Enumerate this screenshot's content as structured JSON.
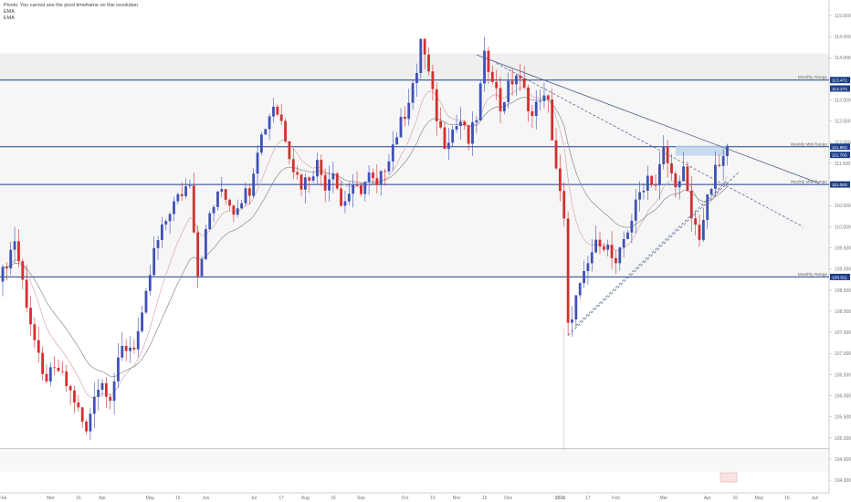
{
  "legend": {
    "pivots": "Pivots: You cannot see the pivot timeframe on this resolution",
    "ema1": "EMA",
    "ema2": "EMA"
  },
  "colors": {
    "up": "#3f51b5",
    "down": "#d32f2f",
    "level_line": "#1e3f8a",
    "range_band": "#efefef",
    "highlight": "#bcd3ee",
    "ema_fast": "#d7a8a8",
    "ema_slow": "#8c8c8c"
  },
  "chart_data": {
    "type": "candlestick",
    "symbol_hint": "USD/JPY weekly",
    "ylim": [
      103.7,
      115.15
    ],
    "yticks": [
      "104.000",
      "104.500",
      "105.000",
      "105.500",
      "106.000",
      "106.500",
      "107.000",
      "107.500",
      "108.000",
      "108.500",
      "109.000",
      "109.500",
      "110.000",
      "110.500",
      "111.000",
      "111.500",
      "112.000",
      "112.500",
      "113.000",
      "113.500",
      "114.000",
      "114.500",
      "115.000"
    ],
    "x_labels": [
      {
        "label": "Feb",
        "i": 0
      },
      {
        "label": "Mar",
        "i": 12
      },
      {
        "label": "16",
        "i": 19
      },
      {
        "label": "Apr",
        "i": 25
      },
      {
        "label": "May",
        "i": 37
      },
      {
        "label": "15",
        "i": 44
      },
      {
        "label": "Jun",
        "i": 51
      },
      {
        "label": "Jul",
        "i": 63
      },
      {
        "label": "17",
        "i": 70
      },
      {
        "label": "Aug",
        "i": 76
      },
      {
        "label": "16",
        "i": 83
      },
      {
        "label": "Sep",
        "i": 90
      },
      {
        "label": "Oct",
        "i": 101
      },
      {
        "label": "15",
        "i": 108
      },
      {
        "label": "Nov",
        "i": 114
      },
      {
        "label": "15",
        "i": 121
      },
      {
        "label": "Dec",
        "i": 127
      },
      {
        "label": "2018",
        "i": 140
      },
      {
        "label": "17",
        "i": 147
      },
      {
        "label": "Feb",
        "i": 154
      },
      {
        "label": "Mar",
        "i": 166
      },
      {
        "label": "Apr",
        "i": 177
      },
      {
        "label": "16",
        "i": 184
      },
      {
        "label": "May",
        "i": 190
      },
      {
        "label": "16",
        "i": 197
      },
      {
        "label": "Jun",
        "i": 204
      }
    ],
    "levels": [
      {
        "label": "Monthly Range",
        "value": 113.471,
        "tag": "113.471"
      },
      {
        "label": "Weekly Mid-Range",
        "value": 111.893,
        "tag": "111.893"
      },
      {
        "label": "Weekly Mid-Range",
        "value": 111.0,
        "tag": "111.000"
      },
      {
        "label": "Monthly Range",
        "value": 108.811,
        "tag": "108.811"
      }
    ],
    "extra_tags": [
      {
        "value": 113.271,
        "text": "113.271"
      },
      {
        "value": 111.7,
        "text": "111.700"
      }
    ],
    "range_band": [
      113.471,
      114.1
    ],
    "lower_line": 104.75,
    "lower_band_bottom": 104.2,
    "highlight_box": {
      "i_start": 169,
      "i_end": 182,
      "y1": 111.92,
      "y2": 111.68
    },
    "trendlines": [
      {
        "from": [
          119,
          114.07
        ],
        "to": [
          205,
          111.03
        ],
        "style": "solid"
      },
      {
        "from": [
          124,
          113.87
        ],
        "to": [
          201,
          110.0
        ],
        "style": "dashed"
      },
      {
        "from": [
          142,
          107.43
        ],
        "to": [
          185,
          111.3
        ],
        "style": "dashed"
      },
      {
        "from": [
          144,
          107.66
        ],
        "to": [
          182,
          111.09
        ],
        "style": "dashed"
      }
    ],
    "vline_index": 141,
    "anchors": [
      [
        0,
        108.9
      ],
      [
        3,
        109.7
      ],
      [
        6,
        108.2
      ],
      [
        10,
        106.4
      ],
      [
        14,
        106.6
      ],
      [
        18,
        105.9
      ],
      [
        21,
        105.1
      ],
      [
        23,
        106.1
      ],
      [
        25,
        106.3
      ],
      [
        27,
        106.0
      ],
      [
        30,
        107.1
      ],
      [
        33,
        107.2
      ],
      [
        35,
        107.8
      ],
      [
        38,
        109.4
      ],
      [
        42,
        110.4
      ],
      [
        45,
        110.8
      ],
      [
        47,
        111.1
      ],
      [
        49,
        108.9
      ],
      [
        52,
        110.3
      ],
      [
        55,
        110.9
      ],
      [
        58,
        110.4
      ],
      [
        60,
        110.7
      ],
      [
        62,
        110.9
      ],
      [
        64,
        111.9
      ],
      [
        68,
        112.9
      ],
      [
        70,
        112.5
      ],
      [
        73,
        111.4
      ],
      [
        75,
        111.0
      ],
      [
        77,
        111.2
      ],
      [
        79,
        111.5
      ],
      [
        81,
        111.0
      ],
      [
        83,
        111.4
      ],
      [
        85,
        110.5
      ],
      [
        87,
        110.8
      ],
      [
        90,
        110.9
      ],
      [
        92,
        111.2
      ],
      [
        94,
        110.9
      ],
      [
        97,
        111.7
      ],
      [
        101,
        112.7
      ],
      [
        103,
        113.4
      ],
      [
        104,
        113.5
      ],
      [
        105,
        114.5
      ],
      [
        107,
        113.6
      ],
      [
        109,
        112.6
      ],
      [
        111,
        112.0
      ],
      [
        113,
        112.3
      ],
      [
        115,
        112.5
      ],
      [
        117,
        112.0
      ],
      [
        119,
        112.6
      ],
      [
        121,
        114.0
      ],
      [
        123,
        113.6
      ],
      [
        125,
        112.8
      ],
      [
        127,
        113.3
      ],
      [
        129,
        113.6
      ],
      [
        131,
        113.2
      ],
      [
        133,
        112.6
      ],
      [
        135,
        113.1
      ],
      [
        137,
        112.9
      ],
      [
        139,
        111.4
      ],
      [
        141,
        110.1
      ],
      [
        142,
        107.6
      ],
      [
        144,
        108.3
      ],
      [
        146,
        108.8
      ],
      [
        148,
        109.4
      ],
      [
        150,
        109.7
      ],
      [
        152,
        109.5
      ],
      [
        154,
        109.0
      ],
      [
        156,
        109.7
      ],
      [
        158,
        110.2
      ],
      [
        160,
        110.8
      ],
      [
        162,
        111.2
      ],
      [
        164,
        111.0
      ],
      [
        166,
        111.8
      ],
      [
        168,
        111.2
      ],
      [
        170,
        111.0
      ],
      [
        171,
        111.3
      ],
      [
        173,
        110.2
      ],
      [
        175,
        109.8
      ],
      [
        177,
        110.6
      ],
      [
        179,
        111.3
      ],
      [
        181,
        111.6
      ],
      [
        182,
        111.8
      ]
    ],
    "current_price_label": "111.700"
  }
}
